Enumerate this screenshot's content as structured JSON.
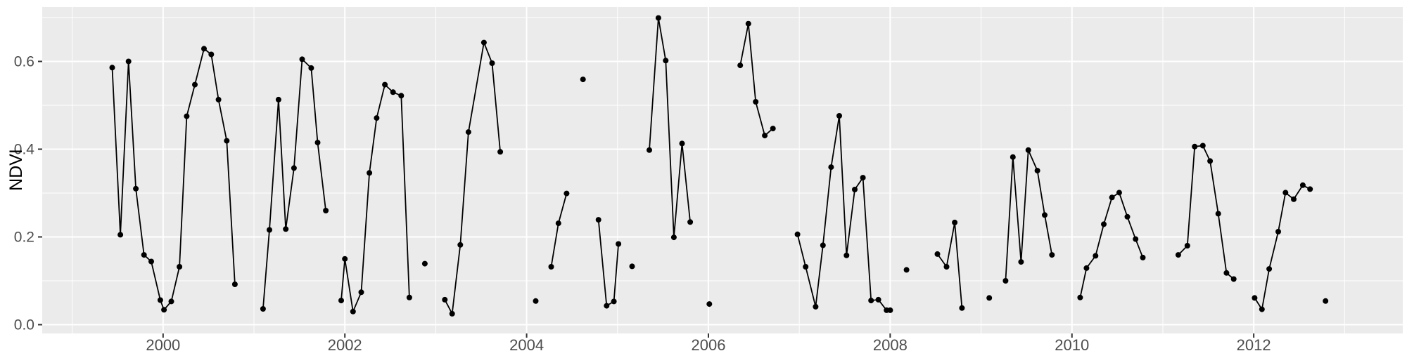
{
  "chart_data": {
    "type": "line",
    "title": "",
    "xlabel": "",
    "ylabel": "NDVI",
    "legend": "none",
    "grid": "major-and-minor",
    "xlim": [
      1998.67,
      2013.64
    ],
    "ylim": [
      -0.02,
      0.724
    ],
    "x_ticks": [
      {
        "v": 2000,
        "label": "2000"
      },
      {
        "v": 2002,
        "label": "2002"
      },
      {
        "v": 2004,
        "label": "2004"
      },
      {
        "v": 2006,
        "label": "2006"
      },
      {
        "v": 2008,
        "label": "2008"
      },
      {
        "v": 2010,
        "label": "2010"
      },
      {
        "v": 2012,
        "label": "2012"
      }
    ],
    "x_minor_ticks": [
      1999,
      2001,
      2003,
      2005,
      2007,
      2009,
      2011,
      2013
    ],
    "y_ticks": [
      {
        "v": 0.0,
        "label": "0.0"
      },
      {
        "v": 0.2,
        "label": "0.2"
      },
      {
        "v": 0.4,
        "label": "0.4"
      },
      {
        "v": 0.6,
        "label": "0.6"
      }
    ],
    "y_minor_ticks": [
      0.1,
      0.3,
      0.5,
      0.7
    ],
    "style": {
      "panel_bg": "#EBEBEB",
      "grid_color": "#FFFFFF",
      "line_color": "#000000",
      "point_color": "#000000",
      "tick_mark_color": "#333333",
      "tick_label_color": "#4D4D4D",
      "axis_title_color": "#000000",
      "outer_bg": "#FFFFFF"
    },
    "series_name": "NDVI",
    "segments": [
      [
        [
          1999.44,
          0.586
        ],
        [
          1999.53,
          0.205
        ],
        [
          1999.62,
          0.6
        ],
        [
          1999.7,
          0.31
        ],
        [
          1999.79,
          0.159
        ],
        [
          1999.87,
          0.144
        ],
        [
          1999.97,
          0.056
        ],
        [
          2000.01,
          0.034
        ],
        [
          2000.09,
          0.053
        ],
        [
          2000.18,
          0.132
        ],
        [
          2000.26,
          0.475
        ],
        [
          2000.35,
          0.547
        ],
        [
          2000.45,
          0.629
        ],
        [
          2000.53,
          0.616
        ],
        [
          2000.61,
          0.513
        ],
        [
          2000.7,
          0.419
        ],
        [
          2000.79,
          0.092
        ]
      ],
      [
        [
          2001.1,
          0.036
        ],
        [
          2001.17,
          0.216
        ],
        [
          2001.27,
          0.513
        ],
        [
          2001.35,
          0.218
        ],
        [
          2001.44,
          0.357
        ],
        [
          2001.53,
          0.605
        ],
        [
          2001.63,
          0.585
        ],
        [
          2001.7,
          0.415
        ],
        [
          2001.79,
          0.26
        ]
      ],
      [
        [
          2001.96,
          0.055
        ],
        [
          2002.0,
          0.15
        ],
        [
          2002.09,
          0.03
        ],
        [
          2002.18,
          0.074
        ],
        [
          2002.27,
          0.346
        ],
        [
          2002.35,
          0.471
        ],
        [
          2002.44,
          0.547
        ],
        [
          2002.53,
          0.53
        ],
        [
          2002.62,
          0.522
        ],
        [
          2002.71,
          0.062
        ]
      ],
      [
        [
          2002.88,
          0.139
        ]
      ],
      [
        [
          2003.1,
          0.057
        ],
        [
          2003.18,
          0.025
        ],
        [
          2003.27,
          0.182
        ],
        [
          2003.36,
          0.439
        ],
        [
          2003.53,
          0.643
        ],
        [
          2003.62,
          0.596
        ],
        [
          2003.71,
          0.394
        ]
      ],
      [
        [
          2004.1,
          0.054
        ]
      ],
      [
        [
          2004.27,
          0.132
        ],
        [
          2004.35,
          0.231
        ],
        [
          2004.44,
          0.299
        ]
      ],
      [
        [
          2004.62,
          0.559
        ]
      ],
      [
        [
          2004.79,
          0.239
        ],
        [
          2004.88,
          0.043
        ],
        [
          2004.96,
          0.053
        ],
        [
          2005.01,
          0.184
        ]
      ],
      [
        [
          2005.16,
          0.133
        ]
      ],
      [
        [
          2005.35,
          0.398
        ],
        [
          2005.45,
          0.699
        ],
        [
          2005.53,
          0.602
        ],
        [
          2005.62,
          0.199
        ],
        [
          2005.71,
          0.413
        ],
        [
          2005.8,
          0.234
        ]
      ],
      [
        [
          2006.01,
          0.047
        ]
      ],
      [
        [
          2006.35,
          0.591
        ],
        [
          2006.44,
          0.686
        ],
        [
          2006.52,
          0.508
        ],
        [
          2006.62,
          0.431
        ],
        [
          2006.71,
          0.447
        ]
      ],
      [
        [
          2006.98,
          0.206
        ],
        [
          2007.07,
          0.132
        ],
        [
          2007.18,
          0.041
        ],
        [
          2007.26,
          0.181
        ],
        [
          2007.35,
          0.359
        ],
        [
          2007.44,
          0.476
        ],
        [
          2007.52,
          0.158
        ],
        [
          2007.61,
          0.308
        ],
        [
          2007.7,
          0.335
        ],
        [
          2007.79,
          0.055
        ],
        [
          2007.87,
          0.057
        ],
        [
          2007.96,
          0.033
        ],
        [
          2008.0,
          0.033
        ]
      ],
      [
        [
          2008.18,
          0.125
        ]
      ],
      [
        [
          2008.52,
          0.161
        ],
        [
          2008.62,
          0.132
        ],
        [
          2008.71,
          0.233
        ],
        [
          2008.79,
          0.038
        ]
      ],
      [
        [
          2009.09,
          0.061
        ]
      ],
      [
        [
          2009.27,
          0.1
        ],
        [
          2009.35,
          0.382
        ],
        [
          2009.44,
          0.143
        ],
        [
          2009.52,
          0.398
        ],
        [
          2009.62,
          0.351
        ],
        [
          2009.7,
          0.25
        ],
        [
          2009.78,
          0.159
        ]
      ],
      [
        [
          2010.09,
          0.062
        ],
        [
          2010.16,
          0.129
        ],
        [
          2010.26,
          0.157
        ],
        [
          2010.35,
          0.229
        ],
        [
          2010.44,
          0.29
        ],
        [
          2010.52,
          0.301
        ],
        [
          2010.61,
          0.246
        ],
        [
          2010.7,
          0.195
        ],
        [
          2010.78,
          0.153
        ]
      ],
      [
        [
          2011.17,
          0.159
        ],
        [
          2011.27,
          0.18
        ],
        [
          2011.35,
          0.406
        ],
        [
          2011.44,
          0.408
        ],
        [
          2011.52,
          0.373
        ],
        [
          2011.61,
          0.253
        ],
        [
          2011.7,
          0.118
        ],
        [
          2011.78,
          0.104
        ]
      ],
      [
        [
          2012.01,
          0.061
        ],
        [
          2012.09,
          0.035
        ],
        [
          2012.17,
          0.127
        ],
        [
          2012.27,
          0.212
        ],
        [
          2012.35,
          0.301
        ],
        [
          2012.44,
          0.286
        ],
        [
          2012.54,
          0.318
        ],
        [
          2012.62,
          0.309
        ]
      ],
      [
        [
          2012.79,
          0.054
        ]
      ]
    ]
  }
}
